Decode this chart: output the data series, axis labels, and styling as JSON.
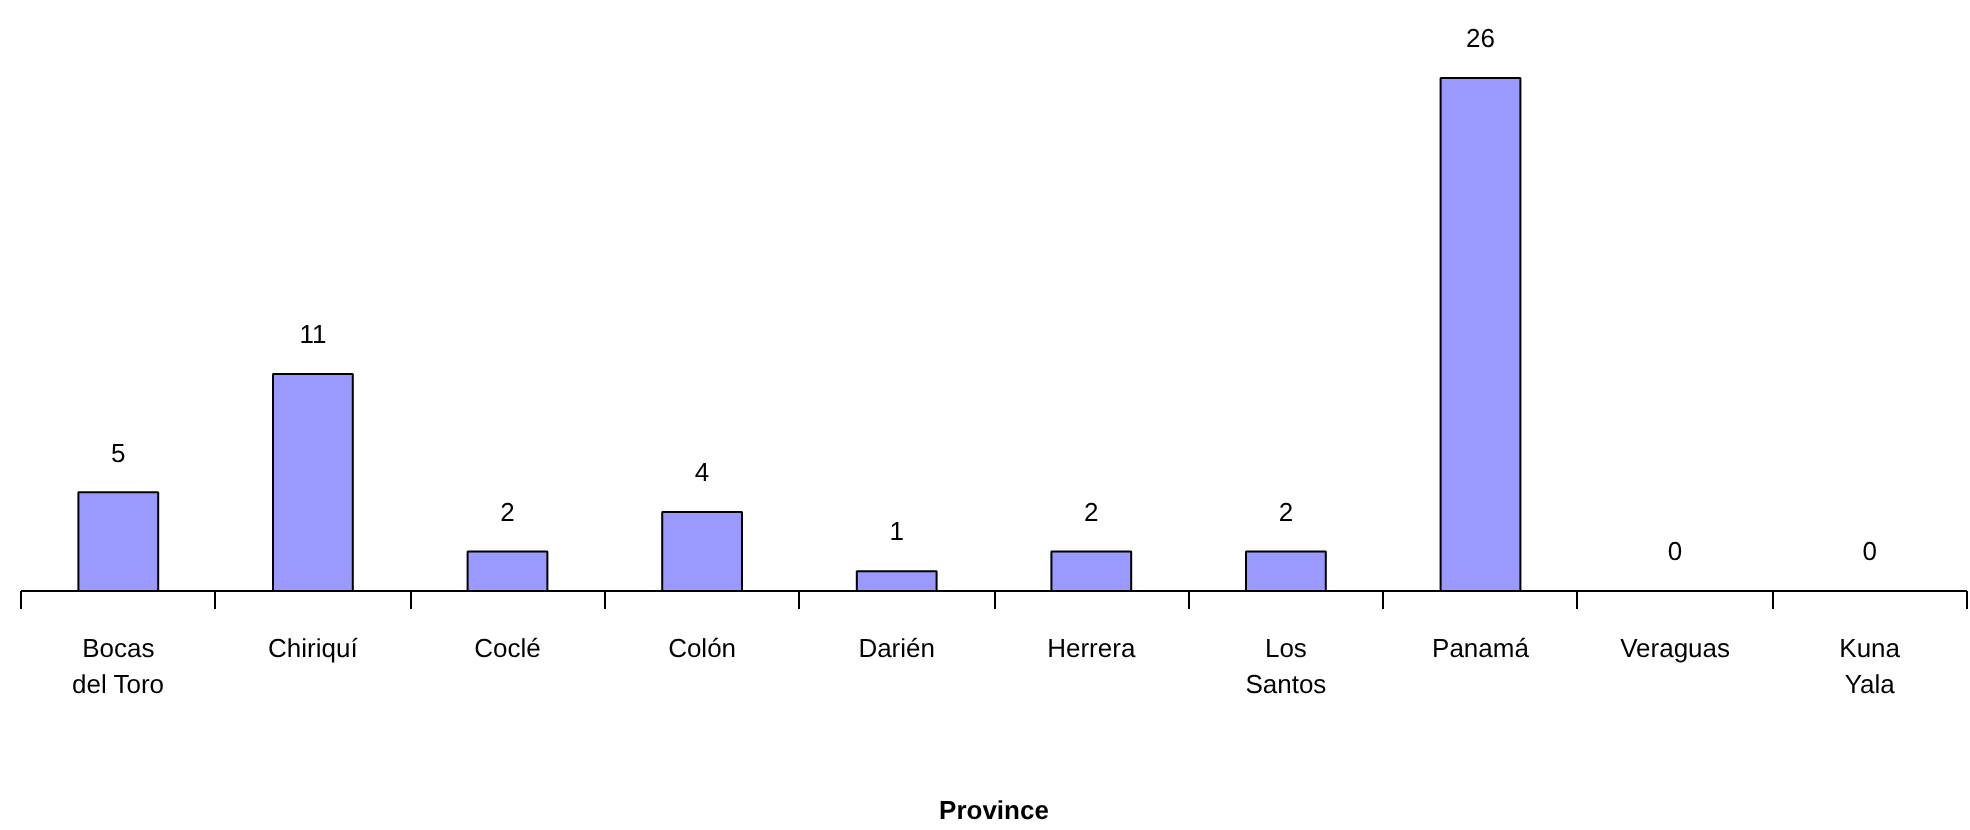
{
  "chart_data": {
    "type": "bar",
    "xlabel": "Province",
    "categories": [
      "Bocas del Toro",
      "Chiriquí",
      "Coclé",
      "Colón",
      "Darién",
      "Herrera",
      "Los Santos",
      "Panamá",
      "Veraguas",
      "Kuna Yala"
    ],
    "values": [
      5,
      11,
      2,
      4,
      1,
      2,
      2,
      26,
      0,
      0
    ],
    "color": "#9999ff",
    "data_labels": true,
    "grid": false
  }
}
